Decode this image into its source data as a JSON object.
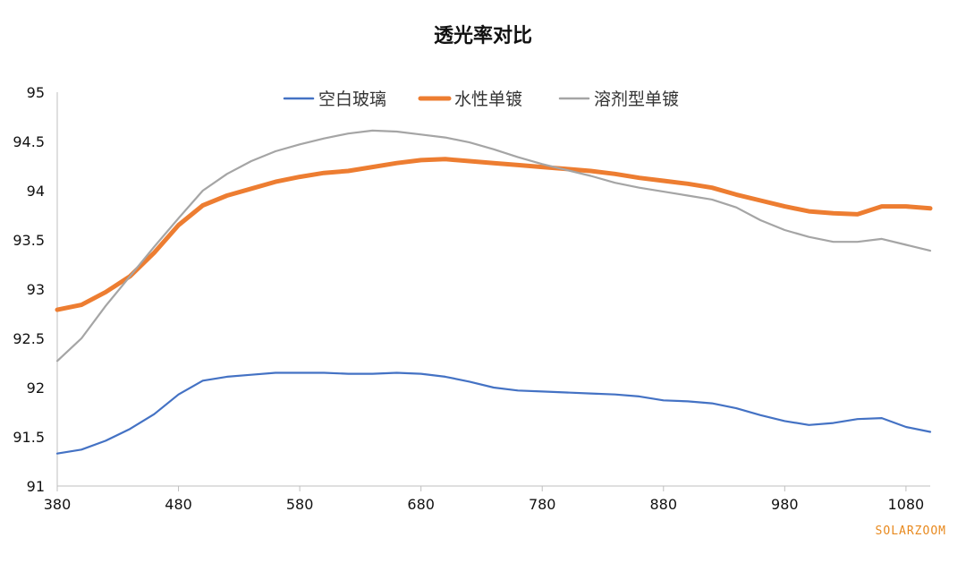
{
  "chart_data": {
    "type": "line",
    "title": "透光率对比",
    "xlabel": "",
    "ylabel": "",
    "xlim": [
      380,
      1100
    ],
    "ylim": [
      91,
      95
    ],
    "xticks": [
      380,
      480,
      580,
      680,
      780,
      880,
      980,
      1080
    ],
    "xtick_labels": [
      "380",
      "480",
      "580",
      "680",
      "780",
      "880",
      "980",
      "1080"
    ],
    "yticks": [
      91,
      91.5,
      92,
      92.5,
      93,
      93.5,
      94,
      94.5,
      95
    ],
    "ytick_labels": [
      "91",
      "91.5",
      "92",
      "92.5",
      "93",
      "93.5",
      "94",
      "94.5",
      "95"
    ],
    "grid": false,
    "legend_position": "top",
    "series": [
      {
        "name": "空白玻璃",
        "color": "#4472C4",
        "stroke": "thin",
        "points": [
          [
            380,
            91.33
          ],
          [
            400,
            91.37
          ],
          [
            420,
            91.46
          ],
          [
            440,
            91.58
          ],
          [
            460,
            91.73
          ],
          [
            480,
            91.93
          ],
          [
            500,
            92.07
          ],
          [
            520,
            92.11
          ],
          [
            540,
            92.13
          ],
          [
            560,
            92.15
          ],
          [
            580,
            92.15
          ],
          [
            600,
            92.15
          ],
          [
            620,
            92.14
          ],
          [
            640,
            92.14
          ],
          [
            660,
            92.15
          ],
          [
            680,
            92.14
          ],
          [
            700,
            92.11
          ],
          [
            720,
            92.06
          ],
          [
            740,
            92.0
          ],
          [
            760,
            91.97
          ],
          [
            780,
            91.96
          ],
          [
            800,
            91.95
          ],
          [
            820,
            91.94
          ],
          [
            840,
            91.93
          ],
          [
            860,
            91.91
          ],
          [
            880,
            91.87
          ],
          [
            900,
            91.86
          ],
          [
            920,
            91.84
          ],
          [
            940,
            91.79
          ],
          [
            960,
            91.72
          ],
          [
            980,
            91.66
          ],
          [
            1000,
            91.62
          ],
          [
            1020,
            91.64
          ],
          [
            1040,
            91.68
          ],
          [
            1060,
            91.69
          ],
          [
            1080,
            91.6
          ],
          [
            1100,
            91.55
          ]
        ]
      },
      {
        "name": "水性单镀",
        "color": "#ED7D31",
        "stroke": "thick",
        "points": [
          [
            380,
            92.79
          ],
          [
            400,
            92.84
          ],
          [
            420,
            92.97
          ],
          [
            440,
            93.13
          ],
          [
            460,
            93.37
          ],
          [
            480,
            93.65
          ],
          [
            500,
            93.85
          ],
          [
            520,
            93.95
          ],
          [
            540,
            94.02
          ],
          [
            560,
            94.09
          ],
          [
            580,
            94.14
          ],
          [
            600,
            94.18
          ],
          [
            620,
            94.2
          ],
          [
            640,
            94.24
          ],
          [
            660,
            94.28
          ],
          [
            680,
            94.31
          ],
          [
            700,
            94.32
          ],
          [
            720,
            94.3
          ],
          [
            740,
            94.28
          ],
          [
            760,
            94.26
          ],
          [
            780,
            94.24
          ],
          [
            800,
            94.22
          ],
          [
            820,
            94.2
          ],
          [
            840,
            94.17
          ],
          [
            860,
            94.13
          ],
          [
            880,
            94.1
          ],
          [
            900,
            94.07
          ],
          [
            920,
            94.03
          ],
          [
            940,
            93.96
          ],
          [
            960,
            93.9
          ],
          [
            980,
            93.84
          ],
          [
            1000,
            93.79
          ],
          [
            1020,
            93.77
          ],
          [
            1040,
            93.76
          ],
          [
            1060,
            93.84
          ],
          [
            1080,
            93.84
          ],
          [
            1100,
            93.82
          ]
        ]
      },
      {
        "name": "溶剂型单镀",
        "color": "#A5A5A5",
        "stroke": "thin",
        "points": [
          [
            380,
            92.27
          ],
          [
            400,
            92.5
          ],
          [
            420,
            92.83
          ],
          [
            440,
            93.13
          ],
          [
            460,
            93.43
          ],
          [
            480,
            93.72
          ],
          [
            500,
            94.0
          ],
          [
            520,
            94.17
          ],
          [
            540,
            94.3
          ],
          [
            560,
            94.4
          ],
          [
            580,
            94.47
          ],
          [
            600,
            94.53
          ],
          [
            620,
            94.58
          ],
          [
            640,
            94.61
          ],
          [
            660,
            94.6
          ],
          [
            680,
            94.57
          ],
          [
            700,
            94.54
          ],
          [
            720,
            94.49
          ],
          [
            740,
            94.42
          ],
          [
            760,
            94.34
          ],
          [
            780,
            94.27
          ],
          [
            800,
            94.21
          ],
          [
            820,
            94.15
          ],
          [
            840,
            94.08
          ],
          [
            860,
            94.03
          ],
          [
            880,
            93.99
          ],
          [
            900,
            93.95
          ],
          [
            920,
            93.91
          ],
          [
            940,
            93.83
          ],
          [
            960,
            93.7
          ],
          [
            980,
            93.6
          ],
          [
            1000,
            93.53
          ],
          [
            1020,
            93.48
          ],
          [
            1040,
            93.48
          ],
          [
            1060,
            93.51
          ],
          [
            1080,
            93.45
          ],
          [
            1100,
            93.39
          ]
        ]
      }
    ]
  },
  "watermark": "SOLARZOOM"
}
